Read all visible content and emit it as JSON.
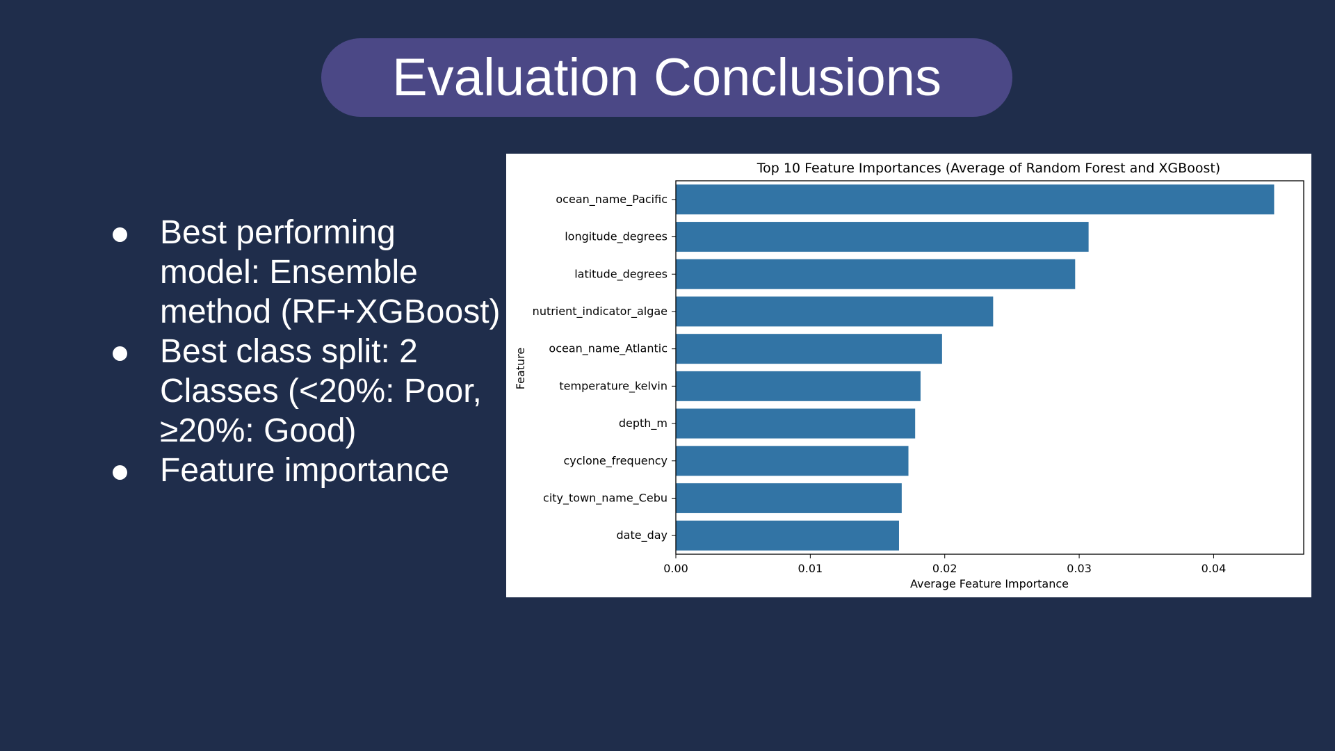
{
  "slide": {
    "title": "Evaluation Conclusions",
    "bullets": [
      "Best performing model: Ensemble method (RF+XGBoost)",
      "Best class split: 2 Classes (<20%: Poor, ≥20%: Good)",
      "Feature importance"
    ]
  },
  "chart_data": {
    "type": "bar",
    "orientation": "horizontal",
    "title": "Top 10 Feature Importances (Average of Random Forest and XGBoost)",
    "xlabel": "Average Feature Importance",
    "ylabel": "Feature",
    "categories": [
      "ocean_name_Pacific",
      "longitude_degrees",
      "latitude_degrees",
      "nutrient_indicator_algae",
      "ocean_name_Atlantic",
      "temperature_kelvin",
      "depth_m",
      "cyclone_frequency",
      "city_town_name_Cebu",
      "date_day"
    ],
    "values": [
      0.0445,
      0.0307,
      0.0297,
      0.0236,
      0.0198,
      0.0182,
      0.0178,
      0.0173,
      0.0168,
      0.0166
    ],
    "xticks": [
      "0.00",
      "0.01",
      "0.02",
      "0.03",
      "0.04"
    ],
    "xlim": [
      0,
      0.0467
    ],
    "bar_color": "#3274a5",
    "grid": false
  }
}
